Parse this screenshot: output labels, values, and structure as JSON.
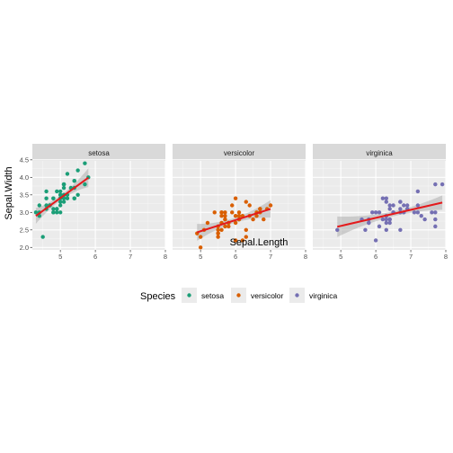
{
  "chart_data": {
    "type": "scatter",
    "xlabel": "Sepal.Length",
    "ylabel": "Sepal.Width",
    "xlim": [
      4.2,
      8.0
    ],
    "ylim": [
      1.93,
      4.47
    ],
    "x_ticks": [
      5,
      6,
      7,
      8
    ],
    "y_ticks": [
      2.0,
      2.5,
      3.0,
      3.5,
      4.0,
      4.5
    ],
    "y_tick_labels": [
      "2.0",
      "2.5",
      "3.0",
      "3.5",
      "4.0",
      "4.5"
    ],
    "grid": true,
    "legend_position": "bottom",
    "legend": {
      "title": "Species",
      "items": [
        {
          "label": "setosa",
          "color": "#1b9e77"
        },
        {
          "label": "versicolor",
          "color": "#d95f02"
        },
        {
          "label": "virginica",
          "color": "#7570b3"
        }
      ]
    },
    "panels": [
      {
        "title": "setosa",
        "color": "#1b9e77",
        "points": [
          [
            5.1,
            3.5
          ],
          [
            4.9,
            3.0
          ],
          [
            4.7,
            3.2
          ],
          [
            4.6,
            3.1
          ],
          [
            5.0,
            3.6
          ],
          [
            5.4,
            3.9
          ],
          [
            4.6,
            3.4
          ],
          [
            5.0,
            3.4
          ],
          [
            4.4,
            2.9
          ],
          [
            4.9,
            3.1
          ],
          [
            5.4,
            3.7
          ],
          [
            4.8,
            3.4
          ],
          [
            4.8,
            3.0
          ],
          [
            4.3,
            3.0
          ],
          [
            5.8,
            4.0
          ],
          [
            5.7,
            4.4
          ],
          [
            5.4,
            3.9
          ],
          [
            5.1,
            3.5
          ],
          [
            5.7,
            3.8
          ],
          [
            5.1,
            3.8
          ],
          [
            5.4,
            3.4
          ],
          [
            5.1,
            3.7
          ],
          [
            4.6,
            3.6
          ],
          [
            5.1,
            3.3
          ],
          [
            4.8,
            3.4
          ],
          [
            5.0,
            3.0
          ],
          [
            5.0,
            3.4
          ],
          [
            5.2,
            3.5
          ],
          [
            5.2,
            3.4
          ],
          [
            4.7,
            3.2
          ],
          [
            4.8,
            3.1
          ],
          [
            5.4,
            3.4
          ],
          [
            5.2,
            4.1
          ],
          [
            5.5,
            4.2
          ],
          [
            4.9,
            3.1
          ],
          [
            5.0,
            3.2
          ],
          [
            5.5,
            3.5
          ],
          [
            4.9,
            3.6
          ],
          [
            4.4,
            3.0
          ],
          [
            5.1,
            3.4
          ],
          [
            5.0,
            3.5
          ],
          [
            4.5,
            2.3
          ],
          [
            4.4,
            3.2
          ],
          [
            5.0,
            3.5
          ],
          [
            5.1,
            3.8
          ],
          [
            4.8,
            3.0
          ],
          [
            5.1,
            3.8
          ],
          [
            4.6,
            3.2
          ],
          [
            5.3,
            3.7
          ],
          [
            5.0,
            3.3
          ]
        ],
        "fit": {
          "x": [
            4.3,
            5.8
          ],
          "y": [
            2.9,
            3.99
          ]
        }
      },
      {
        "title": "versicolor",
        "color": "#d95f02",
        "points": [
          [
            7.0,
            3.2
          ],
          [
            6.4,
            3.2
          ],
          [
            6.9,
            3.1
          ],
          [
            5.5,
            2.3
          ],
          [
            6.5,
            2.8
          ],
          [
            5.7,
            2.8
          ],
          [
            6.3,
            3.3
          ],
          [
            4.9,
            2.4
          ],
          [
            6.6,
            2.9
          ],
          [
            5.2,
            2.7
          ],
          [
            5.0,
            2.0
          ],
          [
            5.9,
            3.0
          ],
          [
            6.0,
            2.2
          ],
          [
            6.1,
            2.9
          ],
          [
            5.6,
            2.9
          ],
          [
            6.7,
            3.1
          ],
          [
            5.6,
            3.0
          ],
          [
            5.8,
            2.7
          ],
          [
            6.2,
            2.2
          ],
          [
            5.6,
            2.5
          ],
          [
            5.9,
            3.2
          ],
          [
            6.1,
            2.8
          ],
          [
            6.3,
            2.5
          ],
          [
            6.1,
            2.8
          ],
          [
            6.4,
            2.9
          ],
          [
            6.6,
            3.0
          ],
          [
            6.8,
            2.8
          ],
          [
            6.7,
            3.0
          ],
          [
            6.0,
            2.9
          ],
          [
            5.7,
            2.6
          ],
          [
            5.5,
            2.4
          ],
          [
            5.5,
            2.4
          ],
          [
            5.8,
            2.7
          ],
          [
            6.0,
            2.7
          ],
          [
            5.4,
            3.0
          ],
          [
            6.0,
            3.4
          ],
          [
            6.7,
            3.1
          ],
          [
            6.3,
            2.3
          ],
          [
            5.6,
            3.0
          ],
          [
            5.5,
            2.5
          ],
          [
            5.5,
            2.6
          ],
          [
            6.1,
            3.0
          ],
          [
            5.8,
            2.6
          ],
          [
            5.0,
            2.3
          ],
          [
            5.6,
            2.7
          ],
          [
            5.7,
            3.0
          ],
          [
            5.7,
            2.9
          ],
          [
            6.2,
            2.9
          ],
          [
            5.1,
            2.5
          ],
          [
            5.7,
            2.8
          ]
        ],
        "fit": {
          "x": [
            4.9,
            7.0
          ],
          "y": [
            2.43,
            3.1
          ]
        }
      },
      {
        "title": "virginica",
        "color": "#7570b3",
        "points": [
          [
            6.3,
            3.3
          ],
          [
            5.8,
            2.7
          ],
          [
            7.1,
            3.0
          ],
          [
            6.3,
            2.9
          ],
          [
            6.5,
            3.0
          ],
          [
            7.6,
            3.0
          ],
          [
            4.9,
            2.5
          ],
          [
            7.3,
            2.9
          ],
          [
            6.7,
            2.5
          ],
          [
            7.2,
            3.6
          ],
          [
            6.5,
            3.2
          ],
          [
            6.4,
            2.7
          ],
          [
            6.8,
            3.0
          ],
          [
            5.7,
            2.5
          ],
          [
            5.8,
            2.8
          ],
          [
            6.4,
            3.2
          ],
          [
            6.5,
            3.0
          ],
          [
            7.7,
            3.8
          ],
          [
            7.7,
            2.6
          ],
          [
            6.0,
            2.2
          ],
          [
            6.9,
            3.2
          ],
          [
            5.6,
            2.8
          ],
          [
            7.7,
            2.8
          ],
          [
            6.3,
            2.7
          ],
          [
            6.7,
            3.3
          ],
          [
            7.2,
            3.2
          ],
          [
            6.2,
            2.8
          ],
          [
            6.1,
            3.0
          ],
          [
            6.4,
            2.8
          ],
          [
            7.2,
            3.0
          ],
          [
            7.4,
            2.8
          ],
          [
            7.9,
            3.8
          ],
          [
            6.4,
            2.8
          ],
          [
            6.3,
            2.8
          ],
          [
            6.1,
            2.6
          ],
          [
            7.7,
            3.0
          ],
          [
            6.3,
            3.4
          ],
          [
            6.4,
            3.1
          ],
          [
            6.0,
            3.0
          ],
          [
            6.9,
            3.1
          ],
          [
            6.7,
            3.1
          ],
          [
            6.9,
            3.1
          ],
          [
            5.8,
            2.7
          ],
          [
            6.8,
            3.2
          ],
          [
            6.7,
            3.3
          ],
          [
            6.7,
            3.0
          ],
          [
            6.3,
            2.5
          ],
          [
            6.5,
            3.0
          ],
          [
            6.2,
            3.4
          ],
          [
            5.9,
            3.0
          ]
        ],
        "fit": {
          "x": [
            4.9,
            7.9
          ],
          "y": [
            2.59,
            3.28
          ]
        }
      }
    ]
  }
}
